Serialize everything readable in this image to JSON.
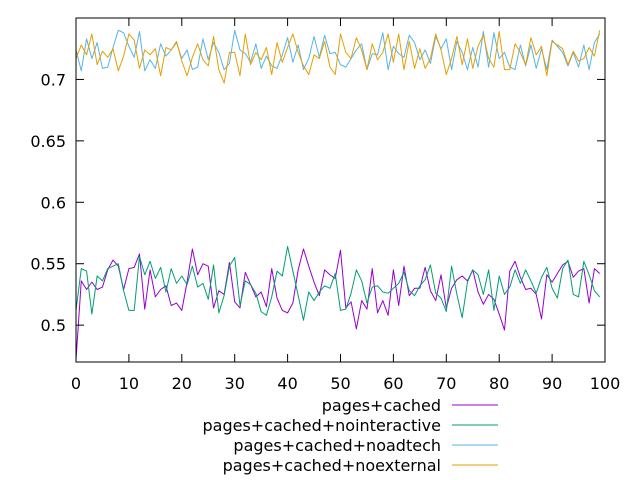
{
  "chart_data": {
    "type": "line",
    "title": "",
    "xlabel": "",
    "ylabel": "",
    "xlim": [
      0,
      100
    ],
    "ylim": [
      0.47,
      0.75
    ],
    "xticks": [
      0,
      10,
      20,
      30,
      40,
      50,
      60,
      70,
      80,
      90,
      100
    ],
    "xtick_labels": [
      "0",
      "10",
      "20",
      "30",
      "40",
      "50",
      "60",
      "70",
      "80",
      "90",
      "100"
    ],
    "yticks": [
      0.5,
      0.55,
      0.6,
      0.65,
      0.7
    ],
    "ytick_labels": [
      "0.5",
      "0.55",
      "0.6",
      "0.65",
      "0.7"
    ],
    "grid": false,
    "legend_position": "below",
    "series": [
      {
        "name": "pages+cached",
        "color": "#9400d3",
        "values": [
          0.472,
          0.536,
          0.529,
          0.535,
          0.529,
          0.531,
          0.545,
          0.553,
          0.548,
          0.529,
          0.546,
          0.547,
          0.558,
          0.513,
          0.545,
          0.523,
          0.529,
          0.532,
          0.516,
          0.518,
          0.512,
          0.535,
          0.562,
          0.541,
          0.55,
          0.548,
          0.514,
          0.528,
          0.525,
          0.551,
          0.519,
          0.514,
          0.543,
          0.533,
          0.523,
          0.527,
          0.515,
          0.546,
          0.522,
          0.512,
          0.51,
          0.518,
          0.545,
          0.562,
          0.548,
          0.535,
          0.524,
          0.545,
          0.541,
          0.538,
          0.561,
          0.514,
          0.519,
          0.497,
          0.52,
          0.513,
          0.546,
          0.51,
          0.52,
          0.508,
          0.545,
          0.516,
          0.548,
          0.524,
          0.53,
          0.53,
          0.547,
          0.528,
          0.52,
          0.541,
          0.514,
          0.53,
          0.537,
          0.54,
          0.536,
          0.545,
          0.527,
          0.517,
          0.525,
          0.521,
          0.509,
          0.496,
          0.544,
          0.552,
          0.539,
          0.529,
          0.53,
          0.525,
          0.505,
          0.541,
          0.535,
          0.542,
          0.549,
          0.552,
          0.539,
          0.544,
          0.546,
          0.518,
          0.546,
          0.542
        ]
      },
      {
        "name": "pages+cached+nointeractive",
        "color": "#009e73",
        "values": [
          0.512,
          0.546,
          0.544,
          0.509,
          0.54,
          0.536,
          0.546,
          0.548,
          0.55,
          0.528,
          0.512,
          0.512,
          0.556,
          0.541,
          0.552,
          0.538,
          0.547,
          0.527,
          0.546,
          0.534,
          0.54,
          0.533,
          0.548,
          0.531,
          0.534,
          0.521,
          0.549,
          0.51,
          0.524,
          0.548,
          0.555,
          0.516,
          0.536,
          0.533,
          0.526,
          0.511,
          0.508,
          0.523,
          0.544,
          0.54,
          0.564,
          0.544,
          0.524,
          0.504,
          0.527,
          0.52,
          0.527,
          0.532,
          0.53,
          0.542,
          0.512,
          0.513,
          0.526,
          0.545,
          0.536,
          0.518,
          0.531,
          0.532,
          0.527,
          0.526,
          0.53,
          0.534,
          0.543,
          0.528,
          0.524,
          0.532,
          0.537,
          0.549,
          0.526,
          0.522,
          0.511,
          0.548,
          0.525,
          0.506,
          0.535,
          0.545,
          0.541,
          0.525,
          0.545,
          0.512,
          0.54,
          0.525,
          0.531,
          0.545,
          0.534,
          0.545,
          0.536,
          0.526,
          0.539,
          0.547,
          0.53,
          0.522,
          0.546,
          0.553,
          0.525,
          0.523,
          0.552,
          0.541,
          0.528,
          0.523
        ]
      },
      {
        "name": "pages+cached+noadtech",
        "color": "#56b4e9",
        "values": [
          0.724,
          0.707,
          0.733,
          0.717,
          0.73,
          0.709,
          0.71,
          0.726,
          0.74,
          0.738,
          0.727,
          0.718,
          0.739,
          0.707,
          0.716,
          0.709,
          0.729,
          0.719,
          0.724,
          0.73,
          0.717,
          0.724,
          0.708,
          0.71,
          0.733,
          0.716,
          0.73,
          0.722,
          0.708,
          0.713,
          0.74,
          0.724,
          0.721,
          0.714,
          0.729,
          0.709,
          0.719,
          0.711,
          0.709,
          0.72,
          0.734,
          0.714,
          0.728,
          0.708,
          0.717,
          0.735,
          0.718,
          0.736,
          0.721,
          0.722,
          0.712,
          0.71,
          0.717,
          0.724,
          0.729,
          0.708,
          0.721,
          0.72,
          0.738,
          0.708,
          0.727,
          0.721,
          0.718,
          0.736,
          0.73,
          0.716,
          0.724,
          0.713,
          0.735,
          0.725,
          0.733,
          0.708,
          0.731,
          0.722,
          0.708,
          0.726,
          0.71,
          0.739,
          0.71,
          0.738,
          0.717,
          0.722,
          0.71,
          0.708,
          0.728,
          0.711,
          0.728,
          0.709,
          0.725,
          0.708,
          0.732,
          0.727,
          0.722,
          0.711,
          0.722,
          0.71,
          0.728,
          0.708,
          0.73,
          0.737
        ]
      },
      {
        "name": "pages+cached+noexternal",
        "color": "#e69f00",
        "values": [
          0.717,
          0.728,
          0.72,
          0.737,
          0.712,
          0.723,
          0.718,
          0.725,
          0.707,
          0.719,
          0.737,
          0.732,
          0.709,
          0.724,
          0.72,
          0.725,
          0.703,
          0.726,
          0.724,
          0.731,
          0.715,
          0.703,
          0.718,
          0.729,
          0.716,
          0.711,
          0.735,
          0.708,
          0.697,
          0.722,
          0.722,
          0.703,
          0.737,
          0.712,
          0.722,
          0.716,
          0.726,
          0.704,
          0.73,
          0.714,
          0.726,
          0.737,
          0.722,
          0.711,
          0.704,
          0.72,
          0.717,
          0.731,
          0.71,
          0.704,
          0.737,
          0.722,
          0.717,
          0.734,
          0.724,
          0.708,
          0.729,
          0.716,
          0.722,
          0.737,
          0.714,
          0.737,
          0.708,
          0.731,
          0.709,
          0.725,
          0.709,
          0.717,
          0.737,
          0.724,
          0.704,
          0.717,
          0.735,
          0.712,
          0.733,
          0.709,
          0.727,
          0.736,
          0.717,
          0.71,
          0.739,
          0.708,
          0.708,
          0.729,
          0.722,
          0.712,
          0.734,
          0.72,
          0.727,
          0.703,
          0.731,
          0.728,
          0.725,
          0.712,
          0.723,
          0.715,
          0.717,
          0.726,
          0.719,
          0.74
        ]
      }
    ]
  }
}
